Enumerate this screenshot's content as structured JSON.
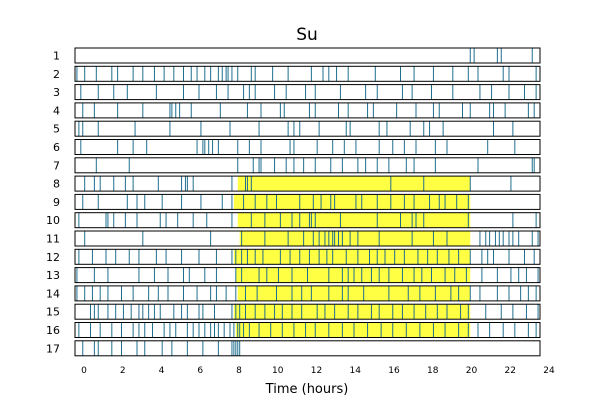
{
  "chart_data": {
    "type": "event-raster",
    "title": "Su",
    "xlabel": "Time (hours)",
    "ylabel": "",
    "xlim": [
      0,
      24
    ],
    "x_ticks": [
      0,
      2,
      4,
      6,
      8,
      10,
      12,
      14,
      16,
      18,
      20,
      22,
      24
    ],
    "grid": false,
    "event_color": "#1f6f8f",
    "highlight_color": "#ffff22",
    "rows": [
      {
        "label": "1",
        "events": [
          20.4,
          20.6,
          21.8,
          22.0,
          23.6
        ],
        "highlight": null
      },
      {
        "label": "2",
        "events": [
          0.1,
          0.5,
          1.1,
          1.9,
          2.2,
          3.0,
          3.5,
          4.1,
          4.6,
          5.1,
          5.6,
          6.0,
          6.3,
          6.7,
          7.0,
          7.4,
          7.6,
          7.8,
          7.9,
          8.1,
          8.4,
          9.1,
          9.3,
          10.2,
          11.0,
          12.2,
          12.8,
          13.1,
          13.5,
          14.1,
          15.5,
          16.8,
          17.5,
          18.5,
          19.5,
          20.3,
          20.8,
          22.1,
          22.4,
          23.8
        ],
        "highlight": null
      },
      {
        "label": "3",
        "events": [
          0.3,
          1.2,
          2.0,
          2.7,
          4.2,
          5.6,
          6.4,
          7.3,
          7.9,
          8.7,
          9.0,
          9.3,
          10.3,
          10.9,
          11.9,
          12.4,
          13.7,
          15.0,
          15.6,
          16.9,
          17.4,
          18.4,
          19.5,
          20.9,
          21.5,
          22.4,
          23.2,
          23.8
        ],
        "highlight": null
      },
      {
        "label": "4",
        "events": [
          0.4,
          1.0,
          2.2,
          3.5,
          4.9,
          5.0,
          5.2,
          5.4,
          6.0,
          7.5,
          8.9,
          9.6,
          10.6,
          10.8,
          12.1,
          12.4,
          13.6,
          14.1,
          15.1,
          15.4,
          16.6,
          17.6,
          18.5,
          18.8,
          20.0,
          20.4,
          21.4,
          21.6,
          22.2,
          23.4,
          23.7
        ],
        "highlight": null
      },
      {
        "label": "5",
        "events": [
          0.2,
          0.4,
          1.2,
          3.1,
          4.9,
          6.5,
          8.0,
          9.5,
          11.0,
          11.3,
          11.6,
          12.6,
          14.0,
          14.2,
          15.7,
          16.1,
          17.3,
          18.0,
          18.3,
          19.0,
          21.6,
          22.6
        ],
        "highlight": null
      },
      {
        "label": "6",
        "events": [
          0.3,
          2.2,
          3.0,
          3.7,
          6.3,
          6.6,
          6.7,
          6.9,
          7.1,
          7.4,
          8.4,
          9.0,
          9.6,
          11.1,
          11.3,
          12.5,
          13.3,
          13.9,
          14.5,
          15.7,
          16.4,
          17.0,
          17.6,
          18.6,
          19.2,
          21.3,
          22.7
        ],
        "highlight": null
      },
      {
        "label": "7",
        "events": [
          1.1,
          2.8,
          8.4,
          9.2,
          9.5,
          9.6,
          10.3,
          10.9,
          11.3,
          11.8,
          12.4,
          13.2,
          13.8,
          14.6,
          15.0,
          15.6,
          16.2,
          17.1,
          17.5,
          18.6,
          20.8,
          23.6,
          23.7
        ],
        "highlight": null
      },
      {
        "label": "8",
        "events": [
          0.5,
          1.0,
          1.3,
          2.0,
          2.6,
          3.0,
          4.3,
          5.5,
          5.7,
          5.8,
          6.1,
          8.1,
          8.8,
          8.9,
          9.1,
          16.3,
          18.0,
          20.4,
          22.5
        ],
        "highlight": [
          8.4,
          20.4
        ]
      },
      {
        "label": "9",
        "events": [
          0.4,
          1.2,
          2.7,
          3.2,
          3.6,
          4.5,
          5.5,
          6.5,
          7.6,
          8.1,
          8.7,
          9.3,
          9.9,
          10.4,
          11.6,
          12.3,
          12.7,
          13.2,
          13.4,
          14.5,
          14.8,
          15.6,
          16.3,
          17.0,
          17.5,
          18.3,
          18.8,
          19.1,
          19.7,
          20.3
        ],
        "highlight": [
          8.2,
          20.4
        ]
      },
      {
        "label": "10",
        "events": [
          0.2,
          1.6,
          1.7,
          2.0,
          2.6,
          3.2,
          4.4,
          4.7,
          5.3,
          6.1,
          6.8,
          8.1,
          9.1,
          9.8,
          10.6,
          11.2,
          11.6,
          12.1,
          12.2,
          12.4,
          13.7,
          15.6,
          16.8,
          17.4,
          17.6,
          18.0,
          20.3,
          22.6,
          23.8
        ],
        "highlight": [
          8.4,
          20.4
        ]
      },
      {
        "label": "11",
        "events": [
          0.5,
          3.5,
          7.0,
          8.6,
          9.8,
          11.0,
          11.8,
          12.3,
          12.6,
          12.9,
          13.1,
          13.3,
          13.4,
          13.6,
          13.8,
          14.2,
          14.6,
          15.7,
          17.4,
          18.5,
          19.2,
          20.9,
          21.2,
          21.4,
          21.7,
          21.9,
          22.1,
          22.4,
          22.6,
          22.9,
          23.6,
          23.9
        ],
        "highlight": [
          8.5,
          20.4
        ]
      },
      {
        "label": "12",
        "events": [
          0.2,
          0.9,
          1.6,
          2.1,
          2.8,
          3.3,
          4.2,
          4.7,
          5.5,
          6.4,
          7.3,
          8.1,
          8.3,
          8.6,
          8.9,
          9.3,
          9.7,
          10.6,
          11.1,
          11.6,
          12.1,
          12.6,
          13.0,
          13.3,
          14.0,
          14.6,
          15.2,
          15.6,
          16.0,
          16.5,
          17.0,
          17.7,
          18.2,
          18.7,
          19.3,
          19.8,
          20.4,
          21.0,
          21.3,
          21.6,
          22.4,
          23.2,
          23.7
        ],
        "highlight": [
          8.2,
          20.4
        ]
      },
      {
        "label": "13",
        "events": [
          0.1,
          1.0,
          1.7,
          3.3,
          4.1,
          4.8,
          5.6,
          5.9,
          6.7,
          7.3,
          8.3,
          8.6,
          9.5,
          9.9,
          10.5,
          11.2,
          12.0,
          13.1,
          13.8,
          14.1,
          14.4,
          14.8,
          15.3,
          15.7,
          16.2,
          16.9,
          17.5,
          17.9,
          18.4,
          19.1,
          19.6,
          20.2,
          21.0,
          21.8,
          22.5,
          22.9,
          23.3,
          23.9
        ],
        "highlight": [
          8.3,
          20.4
        ]
      },
      {
        "label": "14",
        "events": [
          0.1,
          0.5,
          0.9,
          1.3,
          1.7,
          2.4,
          3.0,
          3.8,
          4.3,
          4.8,
          5.6,
          6.3,
          7.0,
          7.3,
          7.8,
          8.3,
          8.8,
          9.4,
          10.4,
          11.2,
          11.7,
          12.2,
          13.1,
          13.8,
          14.1,
          14.9,
          16.2,
          17.2,
          17.8,
          18.6,
          19.4,
          19.8,
          20.4,
          20.9,
          21.8,
          22.4,
          23.0,
          23.4,
          23.8
        ],
        "highlight": [
          8.4,
          20.4
        ]
      },
      {
        "label": "15",
        "events": [
          0.8,
          1.0,
          1.2,
          1.7,
          2.1,
          2.5,
          2.9,
          3.3,
          3.5,
          3.8,
          4.1,
          4.4,
          5.1,
          5.5,
          5.8,
          6.4,
          6.6,
          7.2,
          8.1,
          8.3,
          8.5,
          8.8,
          9.3,
          9.8,
          10.3,
          10.7,
          11.2,
          11.7,
          12.5,
          12.9,
          13.4,
          14.1,
          14.6,
          15.3,
          15.7,
          16.4,
          16.9,
          17.5,
          18.1,
          18.7,
          19.2,
          19.9,
          20.3,
          21.2,
          22.0,
          22.6,
          23.3,
          23.9
        ],
        "highlight": [
          8.2,
          20.4
        ]
      },
      {
        "label": "16",
        "events": [
          0.2,
          0.8,
          1.3,
          1.9,
          2.4,
          3.0,
          3.3,
          3.6,
          4.0,
          4.6,
          4.9,
          5.2,
          5.8,
          6.1,
          6.4,
          6.7,
          7.0,
          7.2,
          7.4,
          7.7,
          8.0,
          8.2,
          8.4,
          8.5,
          8.7,
          9.0,
          9.5,
          10.1,
          10.7,
          11.3,
          11.9,
          12.4,
          13.1,
          13.8,
          14.4,
          15.1,
          15.8,
          16.4,
          17.1,
          17.8,
          18.5,
          19.1,
          19.8,
          20.3,
          20.8,
          21.4,
          22.1,
          22.7,
          23.4,
          23.8
        ],
        "highlight": [
          8.3,
          20.4
        ]
      },
      {
        "label": "17",
        "events": [
          0.4,
          1.0,
          1.2,
          1.9,
          2.4,
          3.2,
          3.6,
          4.5,
          5.0,
          5.8,
          6.6,
          7.4,
          8.1,
          8.2,
          8.3,
          8.4,
          8.5
        ],
        "highlight": null
      }
    ]
  }
}
